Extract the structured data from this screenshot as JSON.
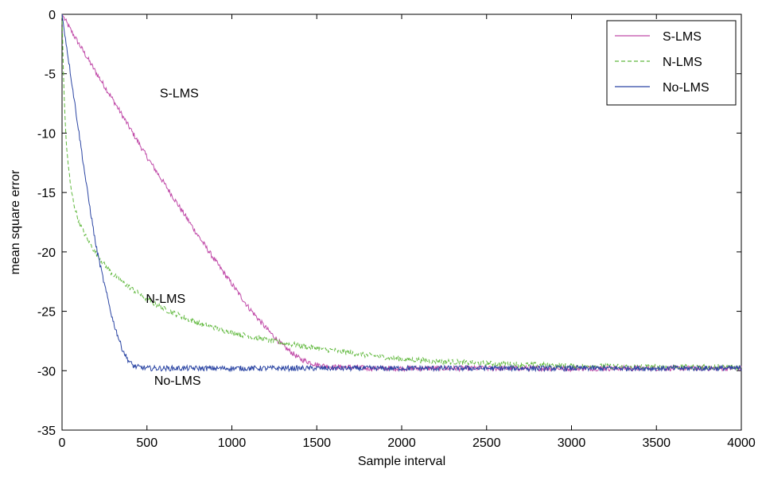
{
  "chart_data": {
    "type": "line",
    "title": "",
    "xlabel": "Sample interval",
    "ylabel": "mean square error",
    "xlim": [
      0,
      4000
    ],
    "ylim": [
      -35,
      0
    ],
    "xticks": [
      0,
      500,
      1000,
      1500,
      2000,
      2500,
      3000,
      3500,
      4000
    ],
    "yticks": [
      0,
      -5,
      -10,
      -15,
      -20,
      -25,
      -30,
      -35
    ],
    "grid": false,
    "legend_position": "top-right",
    "series": [
      {
        "name": "S-LMS",
        "color": "#c04aa8",
        "dash": "solid",
        "x": [
          0,
          50,
          100,
          200,
          300,
          400,
          500,
          600,
          700,
          800,
          900,
          1000,
          1100,
          1200,
          1300,
          1400,
          1500,
          1600,
          1700,
          1800,
          2000,
          2500,
          3000,
          3500,
          4000
        ],
        "y": [
          0,
          -1.3,
          -2.5,
          -4.9,
          -7.2,
          -9.6,
          -12.0,
          -14.2,
          -16.4,
          -18.6,
          -20.7,
          -22.7,
          -24.7,
          -26.4,
          -27.9,
          -29.0,
          -29.5,
          -29.7,
          -29.7,
          -29.8,
          -29.8,
          -29.8,
          -29.8,
          -29.8,
          -29.8
        ]
      },
      {
        "name": "N-LMS",
        "color": "#5fb83c",
        "dash": "dashed",
        "x": [
          0,
          10,
          25,
          50,
          75,
          100,
          150,
          200,
          250,
          300,
          400,
          500,
          600,
          700,
          800,
          900,
          1000,
          1200,
          1400,
          1600,
          1800,
          2000,
          2200,
          2500,
          3000,
          3500,
          4000
        ],
        "y": [
          0,
          -6.0,
          -11.0,
          -14.5,
          -16.3,
          -17.5,
          -19.0,
          -20.1,
          -21.1,
          -21.9,
          -23.0,
          -24.0,
          -24.8,
          -25.4,
          -26.0,
          -26.4,
          -26.8,
          -27.4,
          -27.9,
          -28.3,
          -28.7,
          -29.0,
          -29.2,
          -29.4,
          -29.6,
          -29.7,
          -29.7
        ]
      },
      {
        "name": "No-LMS",
        "color": "#2b45a3",
        "dash": "solid",
        "x": [
          0,
          25,
          50,
          100,
          150,
          200,
          250,
          300,
          350,
          380,
          400,
          420,
          450,
          500,
          600,
          800,
          1000,
          1500,
          2000,
          2500,
          3000,
          3500,
          4000
        ],
        "y": [
          0,
          -2.5,
          -5.0,
          -10.0,
          -15.0,
          -19.5,
          -22.8,
          -25.8,
          -28.0,
          -28.9,
          -29.3,
          -29.6,
          -29.7,
          -29.8,
          -29.8,
          -29.8,
          -29.8,
          -29.8,
          -29.8,
          -29.8,
          -29.8,
          -29.8,
          -29.8
        ]
      }
    ],
    "annotations": [
      {
        "text": "S-LMS",
        "x": 690,
        "y": -7
      },
      {
        "text": "N-LMS",
        "x": 610,
        "y": -24.3
      },
      {
        "text": "No-LMS",
        "x": 680,
        "y": -31.2
      }
    ]
  }
}
